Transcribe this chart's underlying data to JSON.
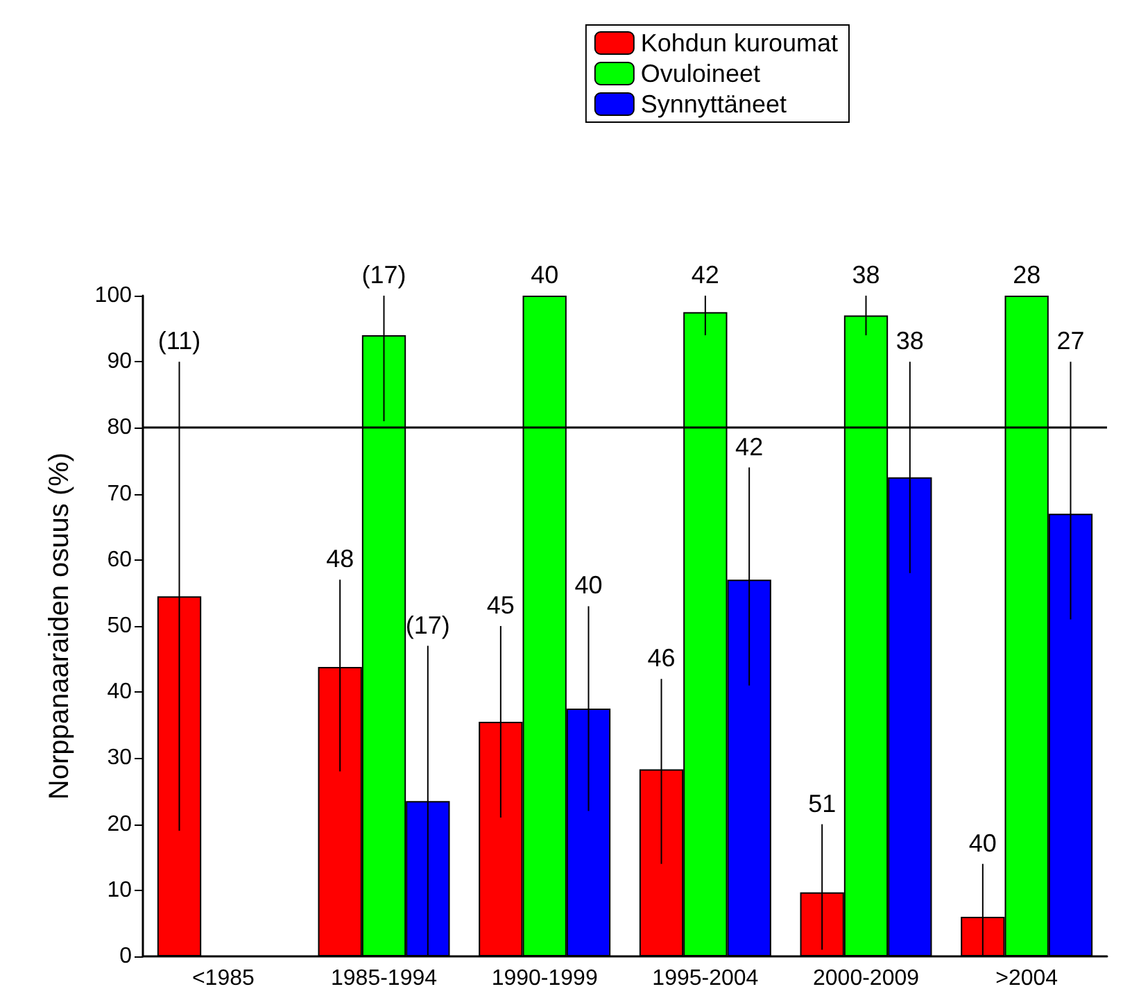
{
  "chart_data": {
    "type": "bar",
    "ylabel": "Norppanaaraiden osuus (%)",
    "categories": [
      "<1985",
      "1985-1994",
      "1990-1999",
      "1995-2004",
      "2000-2009",
      ">2004"
    ],
    "series": [
      {
        "name": "Kohdun kuroumat",
        "color": "#ff0000",
        "values": [
          54.5,
          43.8,
          35.5,
          28.3,
          9.7,
          6
        ],
        "errors": [
          [
            19,
            90
          ],
          [
            28,
            57
          ],
          [
            21,
            50
          ],
          [
            14,
            42
          ],
          [
            1,
            20
          ],
          [
            0,
            14
          ]
        ]
      },
      {
        "name": "Ovuloineet",
        "color": "#00ff00",
        "values": [
          null,
          94,
          100,
          97.5,
          97,
          100
        ],
        "errors": [
          null,
          [
            81,
            100
          ],
          null,
          [
            94,
            100
          ],
          [
            94,
            100
          ],
          null
        ]
      },
      {
        "name": "Synnyttäneet",
        "color": "#0000ff",
        "values": [
          null,
          23.5,
          37.5,
          57,
          72.5,
          67
        ],
        "errors": [
          null,
          [
            0,
            47
          ],
          [
            22,
            53
          ],
          [
            41,
            74
          ],
          [
            58,
            90
          ],
          [
            51,
            90
          ]
        ]
      }
    ],
    "annotations": [
      "(11)",
      "48",
      "(17)",
      "(17)",
      "45",
      "40",
      "40",
      "46",
      "42",
      "42",
      "51",
      "38",
      "38",
      "40",
      "28",
      "27"
    ],
    "ylim": [
      0,
      100
    ],
    "yticks": [
      0,
      10,
      20,
      30,
      40,
      50,
      60,
      70,
      80,
      90,
      100
    ],
    "ref_lines": [
      {
        "axis": "y",
        "value": 80,
        "color": "#000000"
      }
    ],
    "grid": false,
    "legend": "top right"
  }
}
